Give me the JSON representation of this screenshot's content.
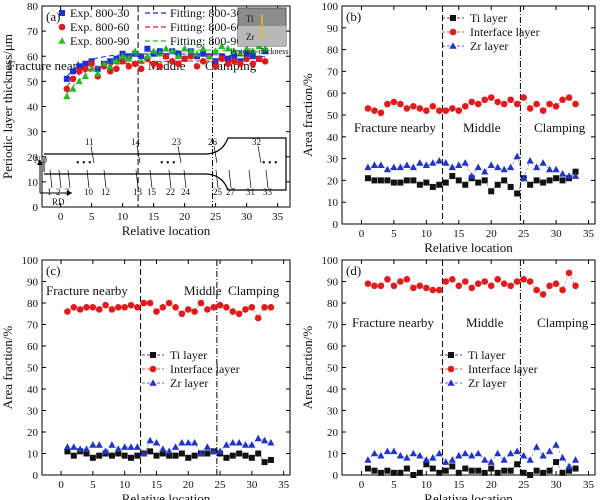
{
  "chart_data": [
    {
      "panel": "(a)",
      "type": "scatter",
      "xlabel": "Relative location",
      "ylabel": "Periodic layer thickness/μm",
      "xlim": [
        -3,
        37
      ],
      "ylim": [
        0,
        80
      ],
      "xticks": [
        0,
        5,
        10,
        15,
        20,
        25,
        30,
        35
      ],
      "yticks": [
        0,
        10,
        20,
        30,
        40,
        50,
        60,
        70,
        80
      ],
      "regions": [
        "Fracture nearby",
        "Middle",
        "Clamping"
      ],
      "dividers": [
        12.5,
        24.5
      ],
      "legend": [
        "Exp. 800-30",
        "Exp. 800-60",
        "Exp. 800-90",
        "Fitting: 800-30",
        "Fitting: 800-60",
        "Fitting: 800-90"
      ],
      "inset_labels": {
        "ti": "Ti",
        "zr": "Zr",
        "caption": "Periodic thickness"
      },
      "schematic": {
        "nd": "ND",
        "rd": "RD",
        "bottom_numbers": [
          "1",
          "2",
          "3",
          "10",
          "12",
          "13",
          "15",
          "22",
          "24",
          "25",
          "27",
          "31",
          "33"
        ],
        "top_numbers": [
          "11",
          "14",
          "23",
          "26",
          "32"
        ]
      },
      "x": [
        1,
        2,
        3,
        4,
        5,
        6,
        7,
        8,
        9,
        10,
        11,
        12,
        13,
        14,
        15,
        16,
        17,
        18,
        19,
        20,
        21,
        22,
        23,
        24,
        25,
        26,
        27,
        28,
        29,
        30,
        31,
        32,
        33
      ],
      "series": [
        {
          "name": "Exp. 800-30",
          "marker": "square",
          "color": "#1f2fd6",
          "values": [
            51,
            54,
            56,
            57,
            58,
            55,
            57,
            58,
            59,
            61,
            60,
            61,
            60,
            63,
            61,
            62,
            60,
            62,
            61,
            59,
            62,
            60,
            61,
            60,
            58,
            60,
            59,
            60,
            58,
            61,
            60,
            59,
            62
          ]
        },
        {
          "name": "Exp. 800-60",
          "marker": "circle",
          "color": "#e31a1c",
          "values": [
            47,
            51,
            54,
            55,
            57,
            52,
            56,
            54,
            55,
            58,
            56,
            57,
            55,
            59,
            57,
            56,
            60,
            58,
            57,
            59,
            60,
            56,
            58,
            60,
            56,
            59,
            57,
            58,
            57,
            59,
            57,
            59,
            58
          ]
        },
        {
          "name": "Exp. 800-90",
          "marker": "triangle",
          "color": "#22bb22",
          "values": [
            44,
            47,
            50,
            52,
            55,
            53,
            57,
            56,
            58,
            60,
            59,
            62,
            58,
            60,
            62,
            61,
            63,
            62,
            60,
            63,
            62,
            61,
            63,
            60,
            62,
            64,
            63,
            62,
            61,
            63,
            62,
            64,
            63
          ]
        }
      ],
      "fits": [
        {
          "name": "Fitting: 800-30",
          "color": "#1f2fd6",
          "values": [
            52.0,
            54.6,
            56.4,
            57.7,
            58.7,
            59.3,
            59.8,
            60.2,
            60.4,
            60.6,
            60.7,
            60.8,
            60.9,
            60.9,
            60.9,
            61.0,
            61.0,
            61.0,
            61.0,
            60.9,
            60.9,
            60.8,
            60.8,
            60.7,
            60.6,
            60.5,
            60.4,
            60.3,
            60.2,
            60.1,
            60.0,
            59.9,
            59.8
          ]
        },
        {
          "name": "Fitting: 800-60",
          "color": "#e31a1c",
          "values": [
            48.0,
            50.9,
            52.8,
            54.1,
            55.0,
            55.6,
            56.1,
            56.5,
            56.8,
            57.1,
            57.3,
            57.5,
            57.6,
            57.7,
            57.8,
            57.9,
            58.0,
            58.0,
            58.1,
            58.1,
            58.1,
            58.1,
            58.1,
            58.1,
            58.1,
            58.1,
            58.1,
            58.0,
            58.0,
            58.0,
            57.9,
            57.9,
            57.8
          ]
        },
        {
          "name": "Fitting: 800-90",
          "color": "#22bb22",
          "values": [
            45.0,
            48.0,
            50.5,
            52.5,
            54.2,
            55.6,
            56.8,
            57.8,
            58.6,
            59.3,
            59.9,
            60.4,
            60.8,
            61.2,
            61.5,
            61.8,
            62.0,
            62.2,
            62.3,
            62.4,
            62.5,
            62.5,
            62.5,
            62.5,
            62.4,
            62.3,
            62.2,
            62.1,
            62.0,
            61.9,
            61.8,
            61.7,
            61.6
          ]
        }
      ]
    },
    {
      "panel": "(b)",
      "type": "scatter",
      "xlabel": "Relative location",
      "ylabel": "Area fraction/%",
      "xlim": [
        -3,
        36
      ],
      "ylim": [
        0,
        100
      ],
      "xticks": [
        0,
        5,
        10,
        15,
        20,
        25,
        30,
        35
      ],
      "yticks": [
        0,
        10,
        20,
        30,
        40,
        50,
        60,
        70,
        80,
        90,
        100
      ],
      "regions": [
        "Fracture nearby",
        "Middle",
        "Clamping"
      ],
      "dividers": [
        12.5,
        24.5
      ],
      "x": [
        1,
        2,
        3,
        4,
        5,
        6,
        7,
        8,
        9,
        10,
        11,
        12,
        13,
        14,
        15,
        16,
        17,
        18,
        19,
        20,
        21,
        22,
        23,
        24,
        25,
        26,
        27,
        28,
        29,
        30,
        31,
        32,
        33
      ],
      "series": [
        {
          "name": "Ti layer",
          "marker": "square",
          "color": "#111111",
          "values": [
            21,
            20,
            20,
            20,
            19,
            19,
            20,
            20,
            18,
            19,
            17,
            18,
            19,
            22,
            20,
            18,
            21,
            19,
            20,
            15,
            18,
            20,
            17,
            14,
            21,
            18,
            20,
            19,
            20,
            21,
            20,
            21,
            24
          ]
        },
        {
          "name": "Interface layer",
          "marker": "circle",
          "color": "#e31a1c",
          "values": [
            53,
            52,
            51,
            55,
            56,
            55,
            53,
            54,
            53,
            52,
            54,
            52,
            52,
            53,
            52,
            54,
            56,
            55,
            57,
            58,
            56,
            55,
            57,
            55,
            58,
            53,
            55,
            52,
            55,
            54,
            57,
            58,
            55
          ]
        },
        {
          "name": "Zr layer",
          "marker": "triangle",
          "color": "#2233cc",
          "values": [
            26,
            27,
            27,
            25,
            26,
            26,
            27,
            26,
            28,
            27,
            28,
            29,
            28,
            26,
            27,
            28,
            22,
            26,
            24,
            27,
            26,
            25,
            26,
            31,
            21,
            29,
            26,
            28,
            25,
            25,
            23,
            22,
            22
          ]
        }
      ]
    },
    {
      "panel": "(c)",
      "type": "scatter",
      "xlabel": "Relative location",
      "ylabel": "Area fraction/%",
      "xlim": [
        -3,
        36
      ],
      "ylim": [
        0,
        100
      ],
      "xticks": [
        0,
        5,
        10,
        15,
        20,
        25,
        30,
        35
      ],
      "yticks": [
        0,
        10,
        20,
        30,
        40,
        50,
        60,
        70,
        80,
        90,
        100
      ],
      "regions": [
        "Fracture nearby",
        "Middle",
        "Clamping"
      ],
      "dividers": [
        12.5,
        24.5
      ],
      "x": [
        1,
        2,
        3,
        4,
        5,
        6,
        7,
        8,
        9,
        10,
        11,
        12,
        13,
        14,
        15,
        16,
        17,
        18,
        19,
        20,
        21,
        22,
        23,
        24,
        25,
        26,
        27,
        28,
        29,
        30,
        31,
        32,
        33
      ],
      "series": [
        {
          "name": "Ti layer",
          "marker": "square",
          "color": "#111111",
          "values": [
            11,
            9,
            11,
            10,
            8,
            9,
            10,
            9,
            10,
            9,
            8,
            9,
            10,
            11,
            9,
            10,
            9,
            9,
            10,
            8,
            9,
            10,
            10,
            11,
            10,
            8,
            9,
            10,
            9,
            8,
            10,
            6,
            7
          ]
        },
        {
          "name": "Interface layer",
          "marker": "circle",
          "color": "#e31a1c",
          "values": [
            76,
            78,
            77,
            78,
            78,
            77,
            79,
            77,
            78,
            78,
            79,
            78,
            80,
            80,
            76,
            78,
            80,
            78,
            75,
            77,
            76,
            80,
            77,
            78,
            79,
            78,
            76,
            75,
            77,
            78,
            73,
            78,
            78
          ]
        },
        {
          "name": "Zr layer",
          "marker": "triangle",
          "color": "#2233cc",
          "values": [
            13,
            13,
            12,
            12,
            14,
            14,
            11,
            14,
            12,
            13,
            13,
            13,
            10,
            16,
            15,
            12,
            11,
            13,
            15,
            15,
            15,
            10,
            13,
            11,
            11,
            14,
            15,
            15,
            14,
            14,
            17,
            16,
            15
          ]
        }
      ]
    },
    {
      "panel": "(d)",
      "type": "scatter",
      "xlabel": "Relative location",
      "ylabel": "Area fraction/%",
      "xlim": [
        -3,
        36
      ],
      "ylim": [
        0,
        100
      ],
      "xticks": [
        0,
        5,
        10,
        15,
        20,
        25,
        30,
        35
      ],
      "yticks": [
        0,
        10,
        20,
        30,
        40,
        50,
        60,
        70,
        80,
        90,
        100
      ],
      "regions": [
        "Fracture nearby",
        "Middle",
        "Clamping"
      ],
      "dividers": [
        12.5,
        24.5
      ],
      "x": [
        1,
        2,
        3,
        4,
        5,
        6,
        7,
        8,
        9,
        10,
        11,
        12,
        13,
        14,
        15,
        16,
        17,
        18,
        19,
        20,
        21,
        22,
        23,
        24,
        25,
        26,
        27,
        28,
        29,
        30,
        31,
        32,
        33
      ],
      "series": [
        {
          "name": "Ti layer",
          "marker": "square",
          "color": "#111111",
          "values": [
            3,
            2,
            1,
            2,
            1,
            1,
            3,
            0,
            1,
            5,
            3,
            1,
            2,
            4,
            1,
            3,
            2,
            2,
            1,
            3,
            1,
            2,
            2,
            5,
            1,
            0,
            2,
            1,
            2,
            6,
            1,
            2,
            3
          ]
        },
        {
          "name": "Interface layer",
          "marker": "circle",
          "color": "#e31a1c",
          "values": [
            89,
            88,
            88,
            91,
            88,
            90,
            91,
            87,
            88,
            87,
            86,
            86,
            90,
            91,
            88,
            90,
            87,
            89,
            90,
            88,
            91,
            89,
            88,
            90,
            91,
            90,
            86,
            84,
            88,
            89,
            86,
            94,
            88
          ]
        },
        {
          "name": "Zr layer",
          "marker": "triangle",
          "color": "#2233cc",
          "values": [
            7,
            10,
            9,
            11,
            11,
            9,
            8,
            10,
            9,
            7,
            8,
            10,
            6,
            7,
            9,
            10,
            9,
            10,
            7,
            6,
            10,
            7,
            10,
            11,
            9,
            7,
            13,
            9,
            11,
            14,
            8,
            4,
            7
          ]
        }
      ]
    }
  ]
}
